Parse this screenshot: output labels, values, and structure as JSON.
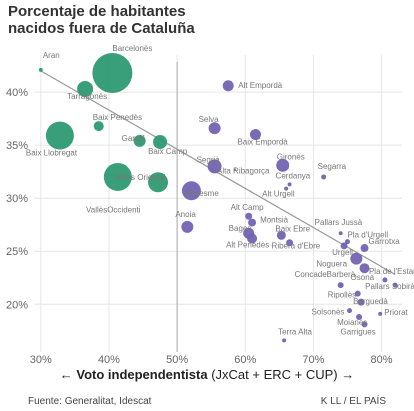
{
  "title_line1": "Porcentaje de habitantes",
  "title_line2": "nacidos fuera de Cataluña",
  "xlabel_arrow_left": "←",
  "xlabel_main": "Voto independentista",
  "xlabel_detail": "(JxCat + ERC + CUP)",
  "xlabel_arrow_right": "→",
  "source": "Fuente: Generalitat, Idescat",
  "credit": "K LL / EL PAÍS",
  "colors": {
    "high_share": "#2e9a73",
    "low_share": "#7463b3",
    "trend": "#999999",
    "grid": "#e6e6e6"
  },
  "chart_data": {
    "type": "scatter",
    "xlabel": "Voto independentista (JxCat + ERC + CUP)",
    "title": "Porcentaje de habitantes nacidos fuera de Cataluña",
    "xlim": [
      29,
      83
    ],
    "ylim": [
      15.5,
      43.5
    ],
    "x_ticks": [
      "30%",
      "40%",
      "50%",
      "60%",
      "70%",
      "80%"
    ],
    "x_tick_values": [
      30,
      40,
      50,
      60,
      70,
      80
    ],
    "y_ticks": [
      "20%",
      "25%",
      "30%",
      "35%",
      "40%"
    ],
    "y_tick_values": [
      20,
      25,
      30,
      35,
      40
    ],
    "reference_line_x": 50,
    "trend_line": {
      "x": [
        30,
        82
      ],
      "y": [
        42,
        22.8
      ]
    },
    "points": [
      {
        "name": "Aran",
        "x": 30,
        "y": 42.1,
        "r": 2
      },
      {
        "name": "Barcelonès",
        "x": 40.5,
        "y": 41.8,
        "r": 20
      },
      {
        "name": "Tarragonès",
        "x": 36.5,
        "y": 40.3,
        "r": 8
      },
      {
        "name": "Alt Empordà",
        "x": 57.5,
        "y": 40.6,
        "r": 5.5
      },
      {
        "name": "Baix Penedès",
        "x": 38.5,
        "y": 36.8,
        "r": 5
      },
      {
        "name": "Baix Llobregat",
        "x": 32.8,
        "y": 35.9,
        "r": 14
      },
      {
        "name": "Garraf",
        "x": 44.5,
        "y": 35.4,
        "r": 6
      },
      {
        "name": "Baix Camp",
        "x": 47.5,
        "y": 35.3,
        "r": 7
      },
      {
        "name": "Selva",
        "x": 55.5,
        "y": 36.6,
        "r": 6
      },
      {
        "name": "Baix Empordà",
        "x": 61.5,
        "y": 36.0,
        "r": 5.5
      },
      {
        "name": "Vallès Oriental",
        "x": 41.3,
        "y": 32.0,
        "r": 14
      },
      {
        "name": "VallèsOccidenti",
        "x": 47.2,
        "y": 31.5,
        "r": 10
      },
      {
        "name": "Maresme",
        "x": 52.1,
        "y": 30.7,
        "r": 9.5
      },
      {
        "name": "Segrià",
        "x": 55.5,
        "y": 33.0,
        "r": 7
      },
      {
        "name": "Alta Ribagorça",
        "x": 58.5,
        "y": 32.7,
        "r": 1
      },
      {
        "name": "Gironès",
        "x": 65.5,
        "y": 33.1,
        "r": 6.5
      },
      {
        "name": "Segarra",
        "x": 71.5,
        "y": 32.0,
        "r": 2.5
      },
      {
        "name": "Cerdanya",
        "x": 66.5,
        "y": 31.3,
        "r": 2
      },
      {
        "name": "Alt Urgell",
        "x": 66.0,
        "y": 30.9,
        "r": 2
      },
      {
        "name": "Anoia",
        "x": 51.5,
        "y": 27.3,
        "r": 6
      },
      {
        "name": "Alt Camp",
        "x": 60.5,
        "y": 28.3,
        "r": 3.5
      },
      {
        "name": "Montsià",
        "x": 61.0,
        "y": 27.7,
        "r": 4
      },
      {
        "name": "Bages",
        "x": 60.5,
        "y": 26.7,
        "r": 5.5
      },
      {
        "name": "Alt Penedès",
        "x": 61.0,
        "y": 26.2,
        "r": 5
      },
      {
        "name": "Baix Ebre",
        "x": 65.3,
        "y": 26.5,
        "r": 4.5
      },
      {
        "name": "Ribera d'Ebre",
        "x": 66.5,
        "y": 25.8,
        "r": 3.5
      },
      {
        "name": "Pallars Jussà",
        "x": 74.0,
        "y": 26.7,
        "r": 2
      },
      {
        "name": "Pla d'Urgell",
        "x": 75.0,
        "y": 25.9,
        "r": 2.5
      },
      {
        "name": "Urgell",
        "x": 74.5,
        "y": 25.5,
        "r": 3.5
      },
      {
        "name": "Garrotxa",
        "x": 77.5,
        "y": 25.3,
        "r": 4
      },
      {
        "name": "Noguera",
        "x": 76.3,
        "y": 24.3,
        "r": 6
      },
      {
        "name": "Osona",
        "x": 77.5,
        "y": 23.4,
        "r": 5
      },
      {
        "name": "Pla de l'Estany",
        "x": 80.5,
        "y": 22.3,
        "r": 2.5
      },
      {
        "name": "Pallars Sobirà",
        "x": 82.0,
        "y": 21.8,
        "r": 2.5
      },
      {
        "name": "ConcadeBarberà",
        "x": 74.0,
        "y": 21.8,
        "r": 3
      },
      {
        "name": "Ripollès",
        "x": 76.5,
        "y": 21.0,
        "r": 3
      },
      {
        "name": "Berguedà",
        "x": 77.0,
        "y": 20.2,
        "r": 3.5
      },
      {
        "name": "Solsonès",
        "x": 75.3,
        "y": 19.4,
        "r": 2.5
      },
      {
        "name": "Priorat",
        "x": 79.8,
        "y": 19.1,
        "r": 2
      },
      {
        "name": "Moianès",
        "x": 76.7,
        "y": 18.8,
        "r": 3
      },
      {
        "name": "Garrigues",
        "x": 77.5,
        "y": 18.1,
        "r": 3
      },
      {
        "name": "Terra Alta",
        "x": 65.7,
        "y": 16.6,
        "r": 2
      }
    ]
  }
}
